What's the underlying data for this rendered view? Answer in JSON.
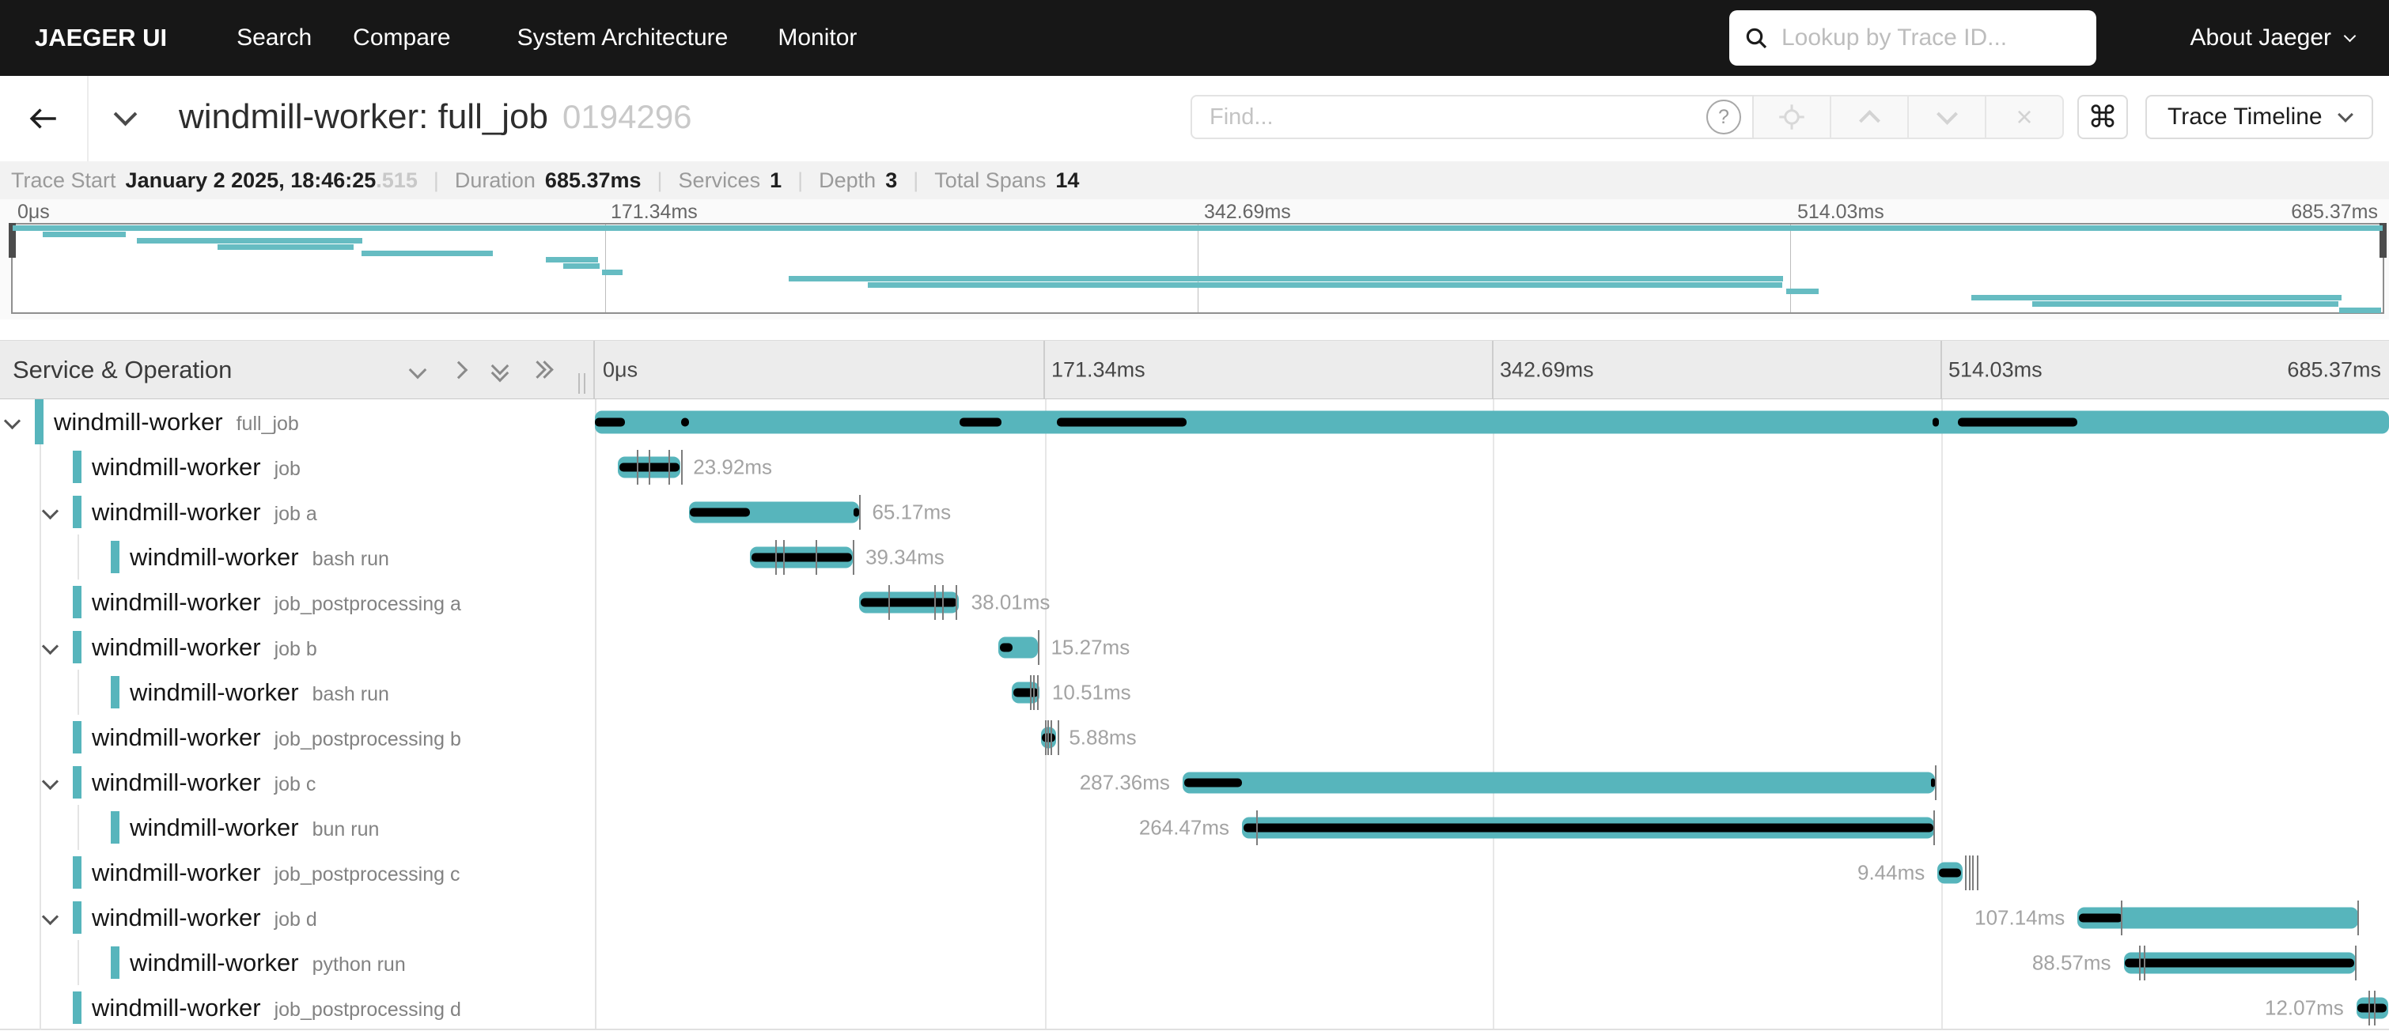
{
  "nav": {
    "brand": "JAEGER UI",
    "items": [
      "Search",
      "Compare",
      "System Architecture",
      "Monitor"
    ],
    "search_placeholder": "Lookup by Trace ID...",
    "about": "About Jaeger"
  },
  "header": {
    "title": "windmill-worker: full_job",
    "trace_id": "0194296",
    "find_placeholder": "Find...",
    "view_select": "Trace Timeline"
  },
  "meta": {
    "trace_start_label": "Trace Start",
    "trace_start_value": "January 2 2025, 18:46:25",
    "trace_start_ms": ".515",
    "duration_label": "Duration",
    "duration": "685.37ms",
    "services_label": "Services",
    "services": "1",
    "depth_label": "Depth",
    "depth": "3",
    "total_spans_label": "Total Spans",
    "total_spans": "14"
  },
  "timeline": {
    "col_header": "Service & Operation",
    "axis_ticks": [
      "0μs",
      "171.34ms",
      "342.69ms",
      "514.03ms",
      "685.37ms"
    ],
    "total_ms": 685.37
  },
  "icons": {
    "command": "⌘",
    "clear": "×",
    "question_mark": "?"
  },
  "colors": {
    "accent": "#57b5bc",
    "minimap_bar": "#66bcc2",
    "critical_path": "#000000",
    "nav_bg": "#171717"
  },
  "spans": [
    {
      "service": "windmill-worker",
      "operation": "full_job",
      "depth": 0,
      "expandable": true,
      "start": 0,
      "dur": 685.37,
      "label": null,
      "label_side": null,
      "critical": [
        [
          0,
          11.5
        ],
        [
          32.9,
          36
        ],
        [
          139.3,
          155.3
        ],
        [
          176.5,
          226
        ],
        [
          510.9,
          513.3
        ],
        [
          520.7,
          566.3
        ]
      ],
      "ticks": []
    },
    {
      "service": "windmill-worker",
      "operation": "job",
      "depth": 1,
      "expandable": false,
      "start": 8.8,
      "dur": 23.92,
      "label": "23.92ms",
      "label_side": "right",
      "critical": [
        [
          9.3,
          32.3
        ]
      ],
      "ticks": [
        16,
        20.5,
        28,
        33
      ]
    },
    {
      "service": "windmill-worker",
      "operation": "job a",
      "depth": 1,
      "expandable": true,
      "start": 35.9,
      "dur": 65.17,
      "label": "65.17ms",
      "label_side": "right",
      "critical": [
        [
          36.4,
          59.3
        ],
        [
          98.9,
          101
        ]
      ],
      "ticks": [
        101
      ]
    },
    {
      "service": "windmill-worker",
      "operation": "bash run",
      "depth": 2,
      "expandable": false,
      "start": 59.2,
      "dur": 39.34,
      "label": "39.34ms",
      "label_side": "right",
      "critical": [
        [
          59.8,
          98.2
        ]
      ],
      "ticks": [
        68.9,
        71.9,
        84.3,
        98.4
      ]
    },
    {
      "service": "windmill-worker",
      "operation": "job_postprocessing a",
      "depth": 1,
      "expandable": false,
      "start": 100.9,
      "dur": 38.01,
      "label": "38.01ms",
      "label_side": "right",
      "critical": [
        [
          101.4,
          138.5
        ]
      ],
      "ticks": [
        112.1,
        129.6,
        132.7,
        137.7
      ]
    },
    {
      "service": "windmill-worker",
      "operation": "job b",
      "depth": 1,
      "expandable": true,
      "start": 154.1,
      "dur": 15.27,
      "label": "15.27ms",
      "label_side": "right",
      "critical": [
        [
          154.6,
          159.6
        ]
      ],
      "ticks": [
        169.2
      ]
    },
    {
      "service": "windmill-worker",
      "operation": "bash run",
      "depth": 2,
      "expandable": false,
      "start": 159.3,
      "dur": 10.51,
      "label": "10.51ms",
      "label_side": "right",
      "critical": [
        [
          159.8,
          169.4
        ]
      ],
      "ticks": [
        166.3,
        167.5,
        169
      ]
    },
    {
      "service": "windmill-worker",
      "operation": "job_postprocessing b",
      "depth": 1,
      "expandable": false,
      "start": 170.4,
      "dur": 5.88,
      "label": "5.88ms",
      "label_side": "right",
      "critical": [
        [
          170.8,
          175.9
        ]
      ],
      "ticks": [
        171.9,
        172.9,
        174.2,
        176.9
      ]
    },
    {
      "service": "windmill-worker",
      "operation": "job c",
      "depth": 1,
      "expandable": true,
      "start": 224.5,
      "dur": 287.36,
      "label": "287.36ms",
      "label_side": "left",
      "critical": [
        [
          225,
          247.2
        ],
        [
          510.3,
          511.8
        ]
      ],
      "ticks": [
        511.9
      ]
    },
    {
      "service": "windmill-worker",
      "operation": "bun run",
      "depth": 2,
      "expandable": false,
      "start": 247.2,
      "dur": 264.47,
      "label": "264.47ms",
      "label_side": "left",
      "critical": [
        [
          247.8,
          511.3
        ]
      ],
      "ticks": [
        252.5,
        511.4
      ]
    },
    {
      "service": "windmill-worker",
      "operation": "job_postprocessing c",
      "depth": 1,
      "expandable": false,
      "start": 512.9,
      "dur": 9.44,
      "label": "9.44ms",
      "label_side": "left",
      "critical": [
        [
          513.3,
          522
        ]
      ],
      "ticks": [
        523.5,
        524.8,
        526.2,
        527.8
      ]
    },
    {
      "service": "windmill-worker",
      "operation": "job d",
      "depth": 1,
      "expandable": true,
      "start": 566.4,
      "dur": 107.14,
      "label": "107.14ms",
      "label_side": "left",
      "critical": [
        [
          566.9,
          583.4
        ]
      ],
      "ticks": [
        582.8,
        673.2
      ]
    },
    {
      "service": "windmill-worker",
      "operation": "python run",
      "depth": 2,
      "expandable": false,
      "start": 584,
      "dur": 88.57,
      "label": "88.57ms",
      "label_side": "left",
      "critical": [
        [
          584.5,
          672.2
        ]
      ],
      "ticks": [
        589.8,
        591.8,
        672.3
      ]
    },
    {
      "service": "windmill-worker",
      "operation": "job_postprocessing d",
      "depth": 1,
      "expandable": false,
      "start": 672.9,
      "dur": 12.07,
      "label": "12.07ms",
      "label_side": "left",
      "critical": [
        [
          673.4,
          684.6
        ]
      ],
      "ticks": [
        677.6,
        679.5
      ]
    }
  ]
}
